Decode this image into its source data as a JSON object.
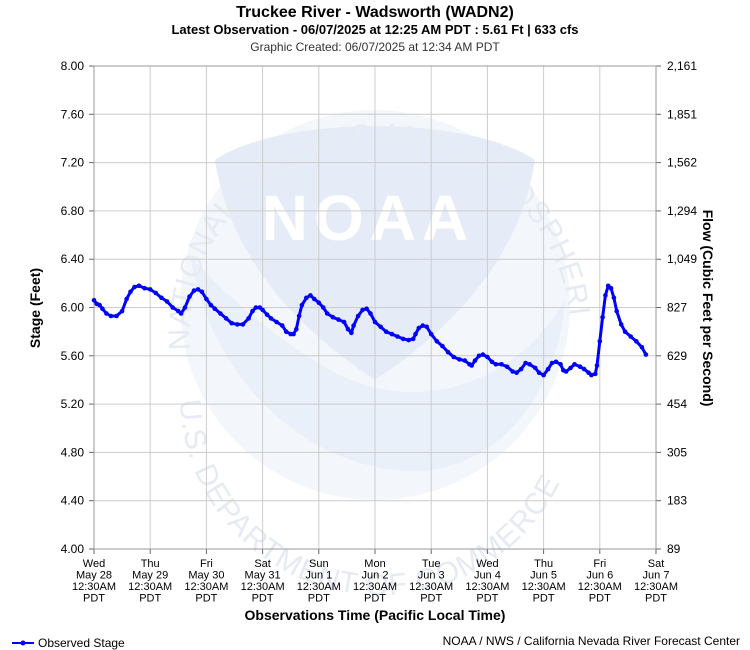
{
  "chart_data": {
    "type": "line",
    "title": "Truckee River - Wadsworth (WADN2)",
    "subtitle": "Latest Observation - 06/07/2025 at 12:25 AM PDT : 5.61 Ft | 633 cfs",
    "created": "Graphic Created: 06/07/2025 at 12:34 AM PDT",
    "xlabel": "Observations Time (Pacific Local Time)",
    "ylabel": "Stage (Feet)",
    "y2label": "Flow (Cubic Feet per Second)",
    "ylim": [
      4.0,
      8.0
    ],
    "yticks": [
      "4.00",
      "4.40",
      "4.80",
      "5.20",
      "5.60",
      "6.00",
      "6.40",
      "6.80",
      "7.20",
      "7.60",
      "8.00"
    ],
    "y2ticks": [
      {
        "stage": 4.0,
        "label": "89"
      },
      {
        "stage": 4.4,
        "label": "183"
      },
      {
        "stage": 4.8,
        "label": "305"
      },
      {
        "stage": 5.2,
        "label": "454"
      },
      {
        "stage": 5.6,
        "label": "629"
      },
      {
        "stage": 6.0,
        "label": "827"
      },
      {
        "stage": 6.4,
        "label": "1,049"
      },
      {
        "stage": 6.8,
        "label": "1,294"
      },
      {
        "stage": 7.2,
        "label": "1,562"
      },
      {
        "stage": 7.6,
        "label": "1,851"
      },
      {
        "stage": 8.0,
        "label": "2,161"
      }
    ],
    "xticks": [
      {
        "day": "Wed",
        "date": "May 28",
        "time": "12:30AM",
        "tz": "PDT"
      },
      {
        "day": "Thu",
        "date": "May 29",
        "time": "12:30AM",
        "tz": "PDT"
      },
      {
        "day": "Fri",
        "date": "May 30",
        "time": "12:30AM",
        "tz": "PDT"
      },
      {
        "day": "Sat",
        "date": "May 31",
        "time": "12:30AM",
        "tz": "PDT"
      },
      {
        "day": "Sun",
        "date": "Jun 1",
        "time": "12:30AM",
        "tz": "PDT"
      },
      {
        "day": "Mon",
        "date": "Jun 2",
        "time": "12:30AM",
        "tz": "PDT"
      },
      {
        "day": "Tue",
        "date": "Jun 3",
        "time": "12:30AM",
        "tz": "PDT"
      },
      {
        "day": "Wed",
        "date": "Jun 4",
        "time": "12:30AM",
        "tz": "PDT"
      },
      {
        "day": "Thu",
        "date": "Jun 5",
        "time": "12:30AM",
        "tz": "PDT"
      },
      {
        "day": "Fri",
        "date": "Jun 6",
        "time": "12:30AM",
        "tz": "PDT"
      },
      {
        "day": "Sat",
        "date": "Jun 7",
        "time": "12:30AM",
        "tz": "PDT"
      }
    ],
    "xlim_days": [
      0,
      10
    ],
    "grid": true,
    "legend": "bottom-left",
    "series": [
      {
        "name": "Observed Stage",
        "color": "#0000ff",
        "points": [
          [
            0.0,
            6.06
          ],
          [
            0.05,
            6.03
          ],
          [
            0.1,
            6.02
          ],
          [
            0.15,
            5.99
          ],
          [
            0.22,
            5.95
          ],
          [
            0.3,
            5.93
          ],
          [
            0.4,
            5.93
          ],
          [
            0.5,
            5.97
          ],
          [
            0.58,
            6.07
          ],
          [
            0.65,
            6.13
          ],
          [
            0.72,
            6.17
          ],
          [
            0.8,
            6.18
          ],
          [
            0.9,
            6.16
          ],
          [
            1.0,
            6.15
          ],
          [
            1.1,
            6.12
          ],
          [
            1.2,
            6.08
          ],
          [
            1.3,
            6.05
          ],
          [
            1.4,
            6.0
          ],
          [
            1.5,
            5.97
          ],
          [
            1.55,
            5.95
          ],
          [
            1.62,
            6.0
          ],
          [
            1.7,
            6.09
          ],
          [
            1.78,
            6.14
          ],
          [
            1.85,
            6.15
          ],
          [
            1.92,
            6.13
          ],
          [
            2.0,
            6.07
          ],
          [
            2.08,
            6.02
          ],
          [
            2.15,
            5.99
          ],
          [
            2.25,
            5.95
          ],
          [
            2.35,
            5.91
          ],
          [
            2.45,
            5.87
          ],
          [
            2.55,
            5.86
          ],
          [
            2.65,
            5.86
          ],
          [
            2.75,
            5.91
          ],
          [
            2.82,
            5.97
          ],
          [
            2.88,
            6.0
          ],
          [
            2.95,
            6.0
          ],
          [
            3.0,
            5.98
          ],
          [
            3.08,
            5.94
          ],
          [
            3.15,
            5.91
          ],
          [
            3.25,
            5.88
          ],
          [
            3.35,
            5.85
          ],
          [
            3.42,
            5.8
          ],
          [
            3.5,
            5.78
          ],
          [
            3.55,
            5.78
          ],
          [
            3.6,
            5.82
          ],
          [
            3.65,
            5.93
          ],
          [
            3.7,
            6.02
          ],
          [
            3.78,
            6.08
          ],
          [
            3.85,
            6.1
          ],
          [
            3.92,
            6.07
          ],
          [
            4.0,
            6.04
          ],
          [
            4.08,
            6.0
          ],
          [
            4.15,
            5.95
          ],
          [
            4.25,
            5.92
          ],
          [
            4.35,
            5.9
          ],
          [
            4.45,
            5.88
          ],
          [
            4.52,
            5.82
          ],
          [
            4.58,
            5.79
          ],
          [
            4.62,
            5.85
          ],
          [
            4.7,
            5.93
          ],
          [
            4.78,
            5.98
          ],
          [
            4.85,
            5.99
          ],
          [
            4.92,
            5.95
          ],
          [
            5.0,
            5.88
          ],
          [
            5.1,
            5.84
          ],
          [
            5.2,
            5.8
          ],
          [
            5.3,
            5.78
          ],
          [
            5.4,
            5.76
          ],
          [
            5.5,
            5.74
          ],
          [
            5.6,
            5.73
          ],
          [
            5.68,
            5.74
          ],
          [
            5.72,
            5.78
          ],
          [
            5.78,
            5.83
          ],
          [
            5.85,
            5.85
          ],
          [
            5.92,
            5.84
          ],
          [
            6.0,
            5.78
          ],
          [
            6.1,
            5.72
          ],
          [
            6.2,
            5.68
          ],
          [
            6.3,
            5.63
          ],
          [
            6.4,
            5.59
          ],
          [
            6.5,
            5.57
          ],
          [
            6.6,
            5.56
          ],
          [
            6.68,
            5.53
          ],
          [
            6.72,
            5.52
          ],
          [
            6.78,
            5.56
          ],
          [
            6.85,
            5.6
          ],
          [
            6.92,
            5.61
          ],
          [
            7.0,
            5.59
          ],
          [
            7.08,
            5.55
          ],
          [
            7.15,
            5.53
          ],
          [
            7.25,
            5.53
          ],
          [
            7.35,
            5.51
          ],
          [
            7.45,
            5.47
          ],
          [
            7.52,
            5.46
          ],
          [
            7.6,
            5.49
          ],
          [
            7.68,
            5.54
          ],
          [
            7.75,
            5.53
          ],
          [
            7.85,
            5.5
          ],
          [
            7.92,
            5.46
          ],
          [
            8.0,
            5.44
          ],
          [
            8.08,
            5.49
          ],
          [
            8.15,
            5.54
          ],
          [
            8.22,
            5.55
          ],
          [
            8.3,
            5.53
          ],
          [
            8.35,
            5.48
          ],
          [
            8.4,
            5.47
          ],
          [
            8.48,
            5.5
          ],
          [
            8.55,
            5.53
          ],
          [
            8.65,
            5.51
          ],
          [
            8.72,
            5.49
          ],
          [
            8.8,
            5.46
          ],
          [
            8.85,
            5.44
          ],
          [
            8.92,
            5.45
          ],
          [
            8.95,
            5.52
          ],
          [
            9.0,
            5.72
          ],
          [
            9.05,
            5.92
          ],
          [
            9.1,
            6.1
          ],
          [
            9.15,
            6.18
          ],
          [
            9.2,
            6.16
          ],
          [
            9.25,
            6.08
          ],
          [
            9.3,
            5.97
          ],
          [
            9.38,
            5.86
          ],
          [
            9.45,
            5.8
          ],
          [
            9.55,
            5.76
          ],
          [
            9.65,
            5.72
          ],
          [
            9.75,
            5.67
          ],
          [
            9.82,
            5.61
          ]
        ]
      }
    ]
  },
  "footer": {
    "credit": "NOAA / NWS / California Nevada River Forecast Center"
  },
  "watermark": {
    "logo": "NOAA",
    "ring_top": "NATIONAL OCEANIC AND ATMOSPHERIC ADMINISTRATION",
    "ring_bottom": "U.S. DEPARTMENT OF COMMERCE",
    "color": "#e8eef8"
  }
}
